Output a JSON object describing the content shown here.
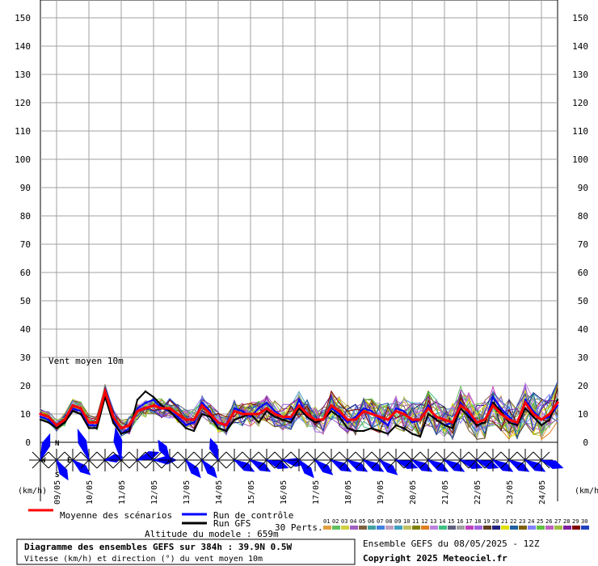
{
  "chart_data": {
    "type": "line",
    "title": "Diagramme des ensembles GEFS sur 384h : 39.9N 0.5W",
    "subtitle": "Vitesse (km/h) et direction (°) du vent moyen 10m",
    "inner_label": "Vent moyen 10m",
    "unit_left": "(km/h)",
    "unit_right": "(km/h)",
    "ylim": [
      0,
      155
    ],
    "yticks": [
      0,
      10,
      20,
      30,
      40,
      50,
      60,
      70,
      80,
      90,
      100,
      110,
      120,
      130,
      140,
      150
    ],
    "grid": true,
    "date_labels": [
      "09/05",
      "10/05",
      "11/05",
      "12/05",
      "13/05",
      "14/05",
      "15/05",
      "16/05",
      "17/05",
      "18/05",
      "19/05",
      "20/05",
      "21/05",
      "22/05",
      "23/05",
      "24/05"
    ],
    "x_step_hours": 6,
    "x_start_hour": 0,
    "series": [
      {
        "name": "Moyenne des scénarios",
        "color": "#ff0000",
        "values": [
          10,
          9,
          6,
          8,
          13,
          12,
          7,
          7,
          18,
          9,
          5,
          6,
          11,
          12,
          13,
          12,
          12,
          10,
          8,
          8,
          13,
          10,
          7,
          6,
          11,
          10,
          10,
          10,
          12,
          10,
          9,
          9,
          13,
          10,
          8,
          8,
          13,
          11,
          8,
          8,
          11,
          10,
          9,
          8,
          11,
          10,
          8,
          8,
          12,
          9,
          8,
          7,
          13,
          11,
          7,
          8,
          13,
          10,
          8,
          7,
          14,
          10,
          8,
          10,
          14
        ]
      },
      {
        "name": "Run de contrôle",
        "color": "#0000ff",
        "values": [
          9,
          8,
          5,
          7,
          12,
          11,
          6,
          6,
          17,
          8,
          3,
          5,
          12,
          14,
          15,
          12,
          11,
          9,
          6,
          7,
          14,
          11,
          5,
          4,
          12,
          11,
          9,
          12,
          14,
          11,
          9,
          8,
          15,
          9,
          7,
          8,
          12,
          10,
          7,
          9,
          12,
          11,
          8,
          6,
          12,
          11,
          7,
          8,
          13,
          8,
          6,
          7,
          14,
          10,
          6,
          7,
          16,
          12,
          9,
          6,
          15,
          11,
          8,
          9,
          13
        ]
      },
      {
        "name": "Run GFS",
        "color": "#000000",
        "values": [
          8,
          7,
          5,
          7,
          11,
          10,
          5,
          5,
          16,
          7,
          3,
          4,
          15,
          18,
          16,
          13,
          11,
          8,
          5,
          4,
          10,
          9,
          5,
          4,
          8,
          9,
          10,
          7,
          11,
          9,
          8,
          7,
          12,
          9,
          7,
          8,
          11,
          9,
          5,
          4,
          4,
          5,
          4,
          3,
          6,
          5,
          3,
          2,
          10,
          8,
          6,
          5,
          12,
          9,
          6,
          7,
          14,
          11,
          7,
          6,
          12,
          9,
          6,
          8,
          15
        ]
      }
    ],
    "members_label": "30 Perts.",
    "member_ids": [
      "01",
      "02",
      "03",
      "04",
      "05",
      "06",
      "07",
      "08",
      "09",
      "10",
      "11",
      "12",
      "13",
      "14",
      "15",
      "16",
      "17",
      "18",
      "19",
      "20",
      "21",
      "22",
      "23",
      "24",
      "25",
      "26",
      "27",
      "28",
      "29",
      "30"
    ],
    "member_colors": [
      "#e0a040",
      "#60c060",
      "#d0d040",
      "#a060c0",
      "#806040",
      "#40a0a0",
      "#4080e0",
      "#c0a0c0",
      "#40a0c0",
      "#c0c060",
      "#808000",
      "#e08020",
      "#c080e0",
      "#40c080",
      "#606080",
      "#a0a0a0",
      "#c040c0",
      "#a060e0",
      "#604020",
      "#202080",
      "#e0e000",
      "#2060a0",
      "#806000",
      "#8080ff",
      "#60c040",
      "#c060c0",
      "#a0c040",
      "#8020a0",
      "#800000",
      "#2040c0"
    ],
    "wind_dir_deg": [
      200,
      330,
      310,
      160,
      260,
      170,
      250,
      270,
      150,
      320,
      320,
      160,
      300,
      300,
      290,
      280,
      320,
      310,
      300,
      300,
      300,
      310,
      290,
      300,
      300,
      300,
      290,
      290,
      300,
      300,
      300,
      290
    ],
    "wind_scale": [
      4,
      3,
      3,
      5,
      2,
      5,
      3,
      3,
      3,
      3,
      3,
      3,
      3,
      3,
      3,
      3,
      3,
      3,
      3,
      3,
      3,
      3,
      3,
      3,
      3,
      3,
      3,
      3,
      3,
      3,
      3,
      3
    ],
    "compass": [
      "N",
      "W",
      "E",
      "S"
    ],
    "legend": {
      "mean": "Moyenne des scénarios",
      "control": "Run de contrôle",
      "gfs": "Run GFS",
      "altitude": "Altitude du modele : 659m"
    },
    "info_right": "Ensemble GEFS du 08/05/2025 - 12Z",
    "copyright": "Copyright 2025 Meteociel.fr"
  }
}
